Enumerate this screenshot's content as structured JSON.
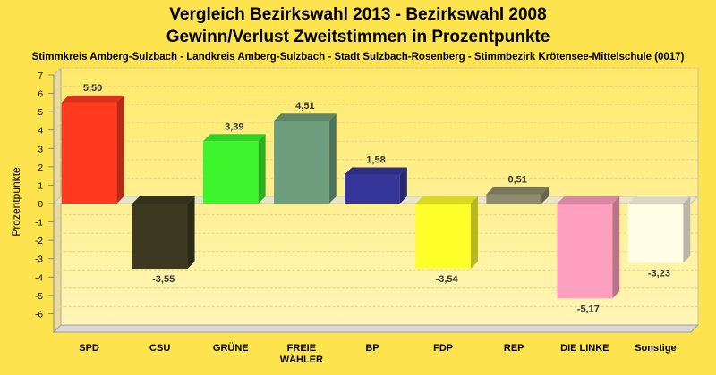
{
  "chart_data": {
    "type": "bar",
    "title": "Vergleich Bezirkswahl 2013 - Bezirkswahl 2008",
    "subtitle": "Gewinn/Verlust Zweitstimmen in Prozentpunkte",
    "subtitle2": "Stimmkreis Amberg-Sulzbach - Landkreis Amberg-Sulzbach - Stadt Sulzbach-Rosenberg - Stimmbezirk Krötensee-Mittelschule (0017)",
    "ylabel": "Prozentpunkte",
    "xlabel": "",
    "ylim": [
      -7,
      7
    ],
    "yticks": [
      7,
      6,
      5,
      4,
      3,
      2,
      1,
      0,
      -1,
      -2,
      -3,
      -4,
      -5,
      -6
    ],
    "ytick_labels": [
      "7",
      "6",
      "5",
      "4",
      "3",
      "2",
      "1",
      "0",
      "-1",
      "-2",
      "-3",
      "-4",
      "-5",
      "-6"
    ],
    "grid": true,
    "categories": [
      "SPD",
      "CSU",
      "GRÜNE",
      "FREIE\nWÄHLER",
      "BP",
      "FDP",
      "REP",
      "DIE LINKE",
      "Sonstige"
    ],
    "values": [
      5.5,
      -3.55,
      3.39,
      4.51,
      1.58,
      -3.54,
      0.51,
      -5.17,
      -3.23
    ],
    "value_labels": [
      "5,50",
      "-3,55",
      "3,39",
      "4,51",
      "1,58",
      "-3,54",
      "0,51",
      "-5,17",
      "-3,23"
    ],
    "colors": [
      "#ff3a1e",
      "#3c3921",
      "#3cf52c",
      "#6e9e7e",
      "#36369a",
      "#ffff29",
      "#8e8c6c",
      "#ffa0c0",
      "#fffde6"
    ]
  }
}
